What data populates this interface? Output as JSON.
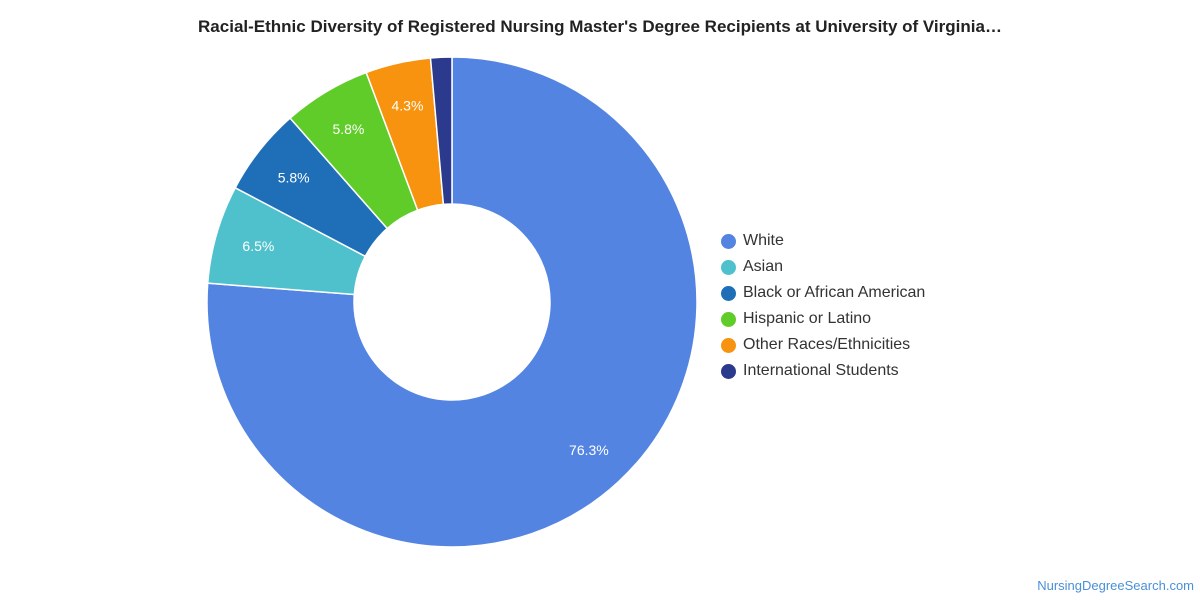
{
  "chart_data": {
    "type": "pie",
    "title": "Racial-Ethnic Diversity of Registered Nursing Master's Degree Recipients at University of Virginia…",
    "donut": true,
    "legend_position": "right",
    "slices": [
      {
        "name": "White",
        "value": 76.3,
        "label": "76.3%",
        "color": "#5484e2"
      },
      {
        "name": "Asian",
        "value": 6.5,
        "label": "6.5%",
        "color": "#4fc1cd"
      },
      {
        "name": "Black or African American",
        "value": 5.8,
        "label": "5.8%",
        "color": "#1f6fb8"
      },
      {
        "name": "Hispanic or Latino",
        "value": 5.8,
        "label": "5.8%",
        "color": "#60cc29"
      },
      {
        "name": "Other Races/Ethnicities",
        "value": 4.3,
        "label": "4.3%",
        "color": "#f7930e"
      },
      {
        "name": "International Students",
        "value": 1.4,
        "label": "",
        "color": "#2b3a8c"
      }
    ]
  },
  "source": "NursingDegreeSearch.com"
}
